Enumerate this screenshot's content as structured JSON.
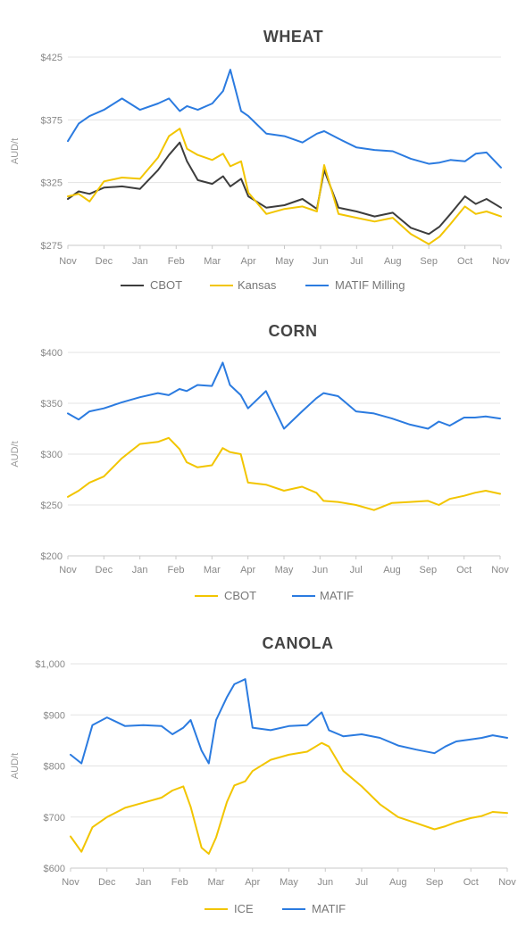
{
  "colors": {
    "CBOT": "#3d3d3d",
    "Kansas": "#f2c500",
    "MATIF Milling": "#2b7be0",
    "MATIF": "#2b7be0",
    "CBOT_corn": "#f2c500",
    "ICE": "#f2c500"
  },
  "chart_data": [
    {
      "type": "line",
      "title": "WHEAT",
      "ylabel": "AUD/t",
      "ylim": [
        275,
        425
      ],
      "yticks": [
        "$425",
        "$375",
        "$325",
        "$275"
      ],
      "ytick_values": [
        425,
        375,
        325,
        275
      ],
      "xlim": [
        0,
        12
      ],
      "xtick_labels": [
        "Nov",
        "Dec",
        "Jan",
        "Feb",
        "Mar",
        "Apr",
        "May",
        "Jun",
        "Jul",
        "Aug",
        "Sep",
        "Oct",
        "Nov"
      ],
      "grid": true,
      "legend": "bottom",
      "series": [
        {
          "name": "CBOT",
          "color": "#3d3d3d",
          "x": [
            0,
            0.3,
            0.6,
            1,
            1.5,
            2,
            2.5,
            2.8,
            3.1,
            3.3,
            3.6,
            4,
            4.3,
            4.5,
            4.8,
            5,
            5.5,
            6,
            6.5,
            6.9,
            7.1,
            7.5,
            8,
            8.5,
            9,
            9.5,
            10,
            10.3,
            10.6,
            11,
            11.3,
            11.6,
            12
          ],
          "y": [
            312,
            318,
            316,
            321,
            322,
            320,
            335,
            347,
            357,
            342,
            327,
            324,
            330,
            322,
            328,
            314,
            305,
            307,
            312,
            304,
            335,
            305,
            302,
            298,
            301,
            289,
            284,
            290,
            300,
            314,
            308,
            312,
            305
          ]
        },
        {
          "name": "Kansas",
          "color": "#f2c500",
          "x": [
            0,
            0.3,
            0.6,
            1,
            1.5,
            2,
            2.5,
            2.8,
            3.1,
            3.3,
            3.6,
            4,
            4.3,
            4.5,
            4.8,
            5,
            5.5,
            6,
            6.5,
            6.9,
            7.1,
            7.5,
            8,
            8.5,
            9,
            9.5,
            10,
            10.3,
            10.6,
            11,
            11.3,
            11.6,
            12
          ],
          "y": [
            314,
            316,
            310,
            326,
            329,
            328,
            345,
            362,
            368,
            352,
            347,
            343,
            348,
            338,
            342,
            317,
            300,
            304,
            306,
            302,
            339,
            300,
            297,
            294,
            297,
            284,
            276,
            282,
            292,
            306,
            300,
            302,
            298
          ]
        },
        {
          "name": "MATIF Milling",
          "color": "#2b7be0",
          "x": [
            0,
            0.3,
            0.6,
            1,
            1.5,
            2,
            2.5,
            2.8,
            3.1,
            3.3,
            3.6,
            4,
            4.3,
            4.5,
            4.8,
            5,
            5.5,
            6,
            6.5,
            6.9,
            7.1,
            7.5,
            8,
            8.5,
            9,
            9.5,
            10,
            10.3,
            10.6,
            11,
            11.3,
            11.6,
            12
          ],
          "y": [
            358,
            372,
            378,
            383,
            392,
            383,
            388,
            392,
            382,
            386,
            383,
            388,
            398,
            415,
            382,
            378,
            364,
            362,
            357,
            364,
            366,
            360,
            353,
            351,
            350,
            344,
            340,
            341,
            343,
            342,
            348,
            349,
            337
          ]
        }
      ]
    },
    {
      "type": "line",
      "title": "CORN",
      "ylabel": "AUD/t",
      "ylim": [
        200,
        400
      ],
      "yticks": [
        "$400",
        "$350",
        "$300",
        "$250",
        "$200"
      ],
      "ytick_values": [
        400,
        350,
        300,
        250,
        200
      ],
      "xlim": [
        0,
        12
      ],
      "xtick_labels": [
        "Nov",
        "Dec",
        "Jan",
        "Feb",
        "Mar",
        "Apr",
        "May",
        "Jun",
        "Jul",
        "Aug",
        "Sep",
        "Oct",
        "Nov"
      ],
      "grid": true,
      "legend": "bottom",
      "series": [
        {
          "name": "CBOT",
          "color": "#f2c500",
          "x": [
            0,
            0.3,
            0.6,
            1,
            1.5,
            2,
            2.5,
            2.8,
            3.1,
            3.3,
            3.6,
            4,
            4.3,
            4.5,
            4.8,
            5,
            5.5,
            6,
            6.5,
            6.9,
            7.1,
            7.5,
            8,
            8.5,
            9,
            9.5,
            10,
            10.3,
            10.6,
            11,
            11.3,
            11.6,
            12
          ],
          "y": [
            258,
            264,
            272,
            278,
            296,
            310,
            312,
            316,
            305,
            292,
            287,
            289,
            306,
            302,
            300,
            272,
            270,
            264,
            268,
            262,
            254,
            253,
            250,
            245,
            252,
            253,
            254,
            250,
            256,
            259,
            262,
            264,
            261
          ]
        },
        {
          "name": "MATIF",
          "color": "#2b7be0",
          "x": [
            0,
            0.3,
            0.6,
            1,
            1.5,
            2,
            2.5,
            2.8,
            3.1,
            3.3,
            3.6,
            4,
            4.3,
            4.5,
            4.8,
            5,
            5.5,
            6,
            6.5,
            6.9,
            7.1,
            7.5,
            8,
            8.5,
            9,
            9.5,
            10,
            10.3,
            10.6,
            11,
            11.3,
            11.6,
            12
          ],
          "y": [
            340,
            334,
            342,
            345,
            351,
            356,
            360,
            358,
            364,
            362,
            368,
            367,
            390,
            368,
            358,
            345,
            362,
            325,
            342,
            355,
            360,
            357,
            342,
            340,
            335,
            329,
            325,
            332,
            328,
            336,
            336,
            337,
            335
          ]
        }
      ]
    },
    {
      "type": "line",
      "title": "CANOLA",
      "ylabel": "AUD/t",
      "ylim": [
        600,
        1000
      ],
      "yticks": [
        "$1,000",
        "$900",
        "$800",
        "$700",
        "$600"
      ],
      "ytick_values": [
        1000,
        900,
        800,
        700,
        600
      ],
      "xlim": [
        0,
        12
      ],
      "xtick_labels": [
        "Nov",
        "Dec",
        "Jan",
        "Feb",
        "Mar",
        "Apr",
        "May",
        "Jun",
        "Jul",
        "Aug",
        "Sep",
        "Oct",
        "Nov"
      ],
      "grid": true,
      "legend": "bottom",
      "series": [
        {
          "name": "ICE",
          "color": "#f2c500",
          "x": [
            0,
            0.3,
            0.6,
            1,
            1.5,
            2,
            2.5,
            2.8,
            3.1,
            3.3,
            3.6,
            3.8,
            4,
            4.3,
            4.5,
            4.8,
            5,
            5.5,
            6,
            6.5,
            6.9,
            7.1,
            7.5,
            8,
            8.5,
            9,
            9.5,
            10,
            10.3,
            10.6,
            11,
            11.3,
            11.6,
            12
          ],
          "y": [
            662,
            632,
            680,
            700,
            718,
            728,
            738,
            752,
            760,
            720,
            640,
            628,
            660,
            730,
            762,
            770,
            790,
            812,
            822,
            828,
            845,
            838,
            790,
            760,
            725,
            700,
            688,
            676,
            682,
            690,
            698,
            702,
            710,
            708
          ]
        },
        {
          "name": "MATIF",
          "color": "#2b7be0",
          "x": [
            0,
            0.3,
            0.6,
            1,
            1.5,
            2,
            2.5,
            2.8,
            3.1,
            3.3,
            3.6,
            3.8,
            4,
            4.3,
            4.5,
            4.8,
            5,
            5.5,
            6,
            6.5,
            6.9,
            7.1,
            7.5,
            8,
            8.5,
            9,
            9.5,
            10,
            10.3,
            10.6,
            11,
            11.3,
            11.6,
            12
          ],
          "y": [
            822,
            805,
            880,
            895,
            878,
            880,
            878,
            862,
            875,
            890,
            830,
            805,
            890,
            935,
            960,
            970,
            875,
            870,
            878,
            880,
            905,
            870,
            858,
            862,
            855,
            840,
            832,
            825,
            838,
            848,
            852,
            855,
            860,
            855
          ]
        }
      ]
    }
  ]
}
